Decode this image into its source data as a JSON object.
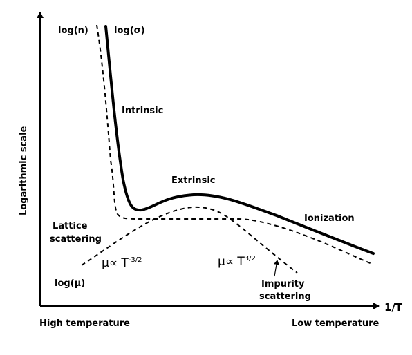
{
  "axes": {
    "y_label": "Logarithmic scale",
    "x_label": "1/T",
    "x_left": "High temperature",
    "x_right": "Low temperature"
  },
  "curves": {
    "log_n": "log(n)",
    "log_sigma": "log(σ)",
    "log_mu": "log(μ)"
  },
  "regions": {
    "intrinsic": "Intrinsic",
    "extrinsic": "Extrinsic",
    "ionization": "Ionization"
  },
  "scattering": {
    "lattice_line1": "Lattice",
    "lattice_line2": "scattering",
    "impurity_line1": "Impurity",
    "impurity_line2": "scattering"
  },
  "formulas": {
    "lattice_base": "μ∝ T",
    "lattice_exp": "-3/2",
    "impurity_base": "μ∝ T",
    "impurity_exp": "3/2"
  }
}
